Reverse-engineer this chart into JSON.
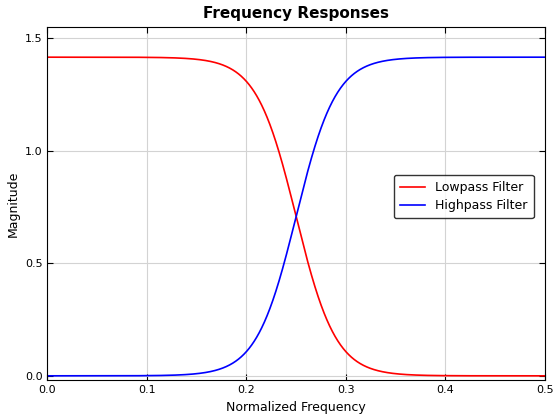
{
  "title": "Frequency Responses",
  "xlabel": "Normalized Frequency",
  "ylabel": "Magnitude",
  "xlim": [
    0,
    0.5
  ],
  "ylim": [
    -0.02,
    1.55
  ],
  "xticks": [
    0,
    0.1,
    0.2,
    0.3,
    0.4,
    0.5
  ],
  "yticks": [
    0,
    0.5,
    1.0,
    1.5
  ],
  "lowpass_color": "#ff0000",
  "highpass_color": "#0000ff",
  "lowpass_label": "Lowpass Filter",
  "highpass_label": "Highpass Filter",
  "amplitude": 1.4142,
  "cutoff": 0.25,
  "steepness": 50,
  "background_color": "#ffffff",
  "grid_color": "#d3d3d3",
  "title_fontsize": 11,
  "label_fontsize": 9,
  "legend_fontsize": 9,
  "linewidth": 1.2,
  "figwidth": 5.6,
  "figheight": 4.2,
  "dpi": 100
}
